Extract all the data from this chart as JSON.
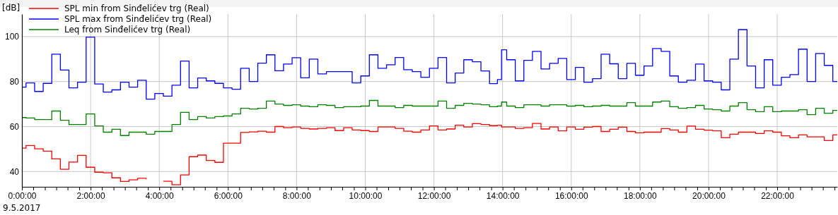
{
  "chart_data": {
    "type": "step",
    "ylabel": "[dB]",
    "legend": "top left",
    "grid": true,
    "annotations": [
      "9.5.2017"
    ],
    "xlim": [
      0,
      23.75
    ],
    "ylim": [
      33.2,
      110
    ],
    "yticks": [
      40,
      60,
      80,
      100
    ],
    "xticks": [
      {
        "value": 0,
        "label": "0:00:00"
      },
      {
        "value": 0.33,
        "label": null
      },
      {
        "value": 0.67,
        "label": null
      },
      {
        "value": 1,
        "label": null
      },
      {
        "value": 1.33,
        "label": null
      },
      {
        "value": 1.67,
        "label": null
      },
      {
        "value": 2,
        "label": "2:00:00"
      },
      {
        "value": 2.33,
        "label": null
      },
      {
        "value": 2.67,
        "label": null
      },
      {
        "value": 3,
        "label": null
      },
      {
        "value": 3.33,
        "label": null
      },
      {
        "value": 3.67,
        "label": null
      },
      {
        "value": 4,
        "label": "4:00:00"
      },
      {
        "value": 4.33,
        "label": null
      },
      {
        "value": 4.67,
        "label": null
      },
      {
        "value": 5,
        "label": null
      },
      {
        "value": 5.33,
        "label": null
      },
      {
        "value": 5.67,
        "label": null
      },
      {
        "value": 6,
        "label": "6:00:00"
      },
      {
        "value": 6.33,
        "label": null
      },
      {
        "value": 6.67,
        "label": null
      },
      {
        "value": 7,
        "label": null
      },
      {
        "value": 7.33,
        "label": null
      },
      {
        "value": 7.67,
        "label": null
      },
      {
        "value": 8,
        "label": "8:00:00"
      },
      {
        "value": 8.33,
        "label": null
      },
      {
        "value": 8.67,
        "label": null
      },
      {
        "value": 9,
        "label": null
      },
      {
        "value": 9.33,
        "label": null
      },
      {
        "value": 9.67,
        "label": null
      },
      {
        "value": 10,
        "label": "10:00:00"
      },
      {
        "value": 10.33,
        "label": null
      },
      {
        "value": 10.67,
        "label": null
      },
      {
        "value": 11,
        "label": null
      },
      {
        "value": 11.33,
        "label": null
      },
      {
        "value": 11.67,
        "label": null
      },
      {
        "value": 12,
        "label": "12:00:00"
      },
      {
        "value": 12.33,
        "label": null
      },
      {
        "value": 12.67,
        "label": null
      },
      {
        "value": 13,
        "label": null
      },
      {
        "value": 13.33,
        "label": null
      },
      {
        "value": 13.67,
        "label": null
      },
      {
        "value": 14,
        "label": "14:00:00"
      },
      {
        "value": 14.33,
        "label": null
      },
      {
        "value": 14.67,
        "label": null
      },
      {
        "value": 15,
        "label": null
      },
      {
        "value": 15.33,
        "label": null
      },
      {
        "value": 15.67,
        "label": null
      },
      {
        "value": 16,
        "label": "16:00:00"
      },
      {
        "value": 16.33,
        "label": null
      },
      {
        "value": 16.67,
        "label": null
      },
      {
        "value": 17,
        "label": null
      },
      {
        "value": 17.33,
        "label": null
      },
      {
        "value": 17.67,
        "label": null
      },
      {
        "value": 18,
        "label": "18:00:00"
      },
      {
        "value": 18.33,
        "label": null
      },
      {
        "value": 18.67,
        "label": null
      },
      {
        "value": 19,
        "label": null
      },
      {
        "value": 19.33,
        "label": null
      },
      {
        "value": 19.67,
        "label": null
      },
      {
        "value": 20,
        "label": "20:00:00"
      },
      {
        "value": 20.33,
        "label": null
      },
      {
        "value": 20.67,
        "label": null
      },
      {
        "value": 21,
        "label": null
      },
      {
        "value": 21.33,
        "label": null
      },
      {
        "value": 21.67,
        "label": null
      },
      {
        "value": 22,
        "label": "22:00:00"
      },
      {
        "value": 22.33,
        "label": null
      },
      {
        "value": 22.67,
        "label": null
      },
      {
        "value": 23,
        "label": null
      },
      {
        "value": 23.33,
        "label": null
      },
      {
        "value": 23.67,
        "label": null
      }
    ],
    "x": [
      0,
      0.12,
      0.37,
      0.62,
      0.87,
      1.12,
      1.37,
      1.62,
      1.87,
      2.12,
      2.37,
      2.62,
      2.87,
      3.12,
      3.37,
      3.62,
      3.87,
      4.12,
      4.37,
      4.62,
      4.87,
      5.12,
      5.37,
      5.62,
      5.87,
      6.12,
      6.37,
      6.62,
      6.87,
      7.12,
      7.37,
      7.62,
      7.87,
      8.12,
      8.37,
      8.62,
      8.87,
      9.12,
      9.37,
      9.62,
      9.87,
      10.12,
      10.37,
      10.62,
      10.87,
      11.12,
      11.37,
      11.62,
      11.87,
      12.12,
      12.37,
      12.62,
      12.87,
      13.12,
      13.37,
      13.62,
      13.85,
      13.97,
      14.12,
      14.37,
      14.62,
      14.87,
      15.12,
      15.37,
      15.62,
      15.87,
      16.12,
      16.37,
      16.62,
      16.87,
      17.12,
      17.37,
      17.62,
      17.87,
      18.12,
      18.37,
      18.62,
      18.87,
      19.12,
      19.37,
      19.62,
      19.87,
      20.12,
      20.37,
      20.62,
      20.87,
      21.12,
      21.37,
      21.62,
      21.87,
      22.12,
      22.37,
      22.62,
      22.87,
      23.12,
      23.37,
      23.62,
      23.75
    ],
    "series": [
      {
        "name": "SPL min from Sinđelićev trg (Real)",
        "color": "#ff0000",
        "values": [
          50.4,
          51.6,
          50.1,
          49.1,
          45.6,
          41.0,
          44.2,
          47.2,
          41.9,
          39.7,
          39.4,
          37.2,
          35.6,
          36.3,
          37.0,
          36.6,
          null,
          35.7,
          34.1,
          38.5,
          46.6,
          47.3,
          44.9,
          44.1,
          52.6,
          52.6,
          57.4,
          57.6,
          57.9,
          57.5,
          60.0,
          59.5,
          59.8,
          59.2,
          58.9,
          59.2,
          59.5,
          58.2,
          59.5,
          58.5,
          58.2,
          57.8,
          59.8,
          59.8,
          59.2,
          57.9,
          57.5,
          58.5,
          60.3,
          58.5,
          58.9,
          60.6,
          59.8,
          61.3,
          60.9,
          60.4,
          60.6,
          59.8,
          59.8,
          59.2,
          59.5,
          61.4,
          58.9,
          59.8,
          58.1,
          59.8,
          58.8,
          59.7,
          60.0,
          57.8,
          58.8,
          59.7,
          57.8,
          57.2,
          57.5,
          57.5,
          59.1,
          58.5,
          57.5,
          60.2,
          58.8,
          58.4,
          58.1,
          55.0,
          56.6,
          57.5,
          57.5,
          56.9,
          58.1,
          57.5,
          55.9,
          55.0,
          56.3,
          55.4,
          55.4,
          53.8,
          56.3,
          56.3
        ]
      },
      {
        "name": "SPL max from Sinđelićev trg (Real)",
        "color": "#0000ff",
        "values": [
          77.5,
          79.4,
          75.6,
          79.2,
          92.2,
          85.1,
          77.2,
          79.7,
          99.8,
          78.9,
          75.3,
          76.3,
          79.7,
          77.5,
          80.6,
          72.2,
          74.7,
          73.5,
          78.4,
          89.1,
          77.2,
          81.6,
          80.3,
          79.2,
          77.2,
          76.6,
          85.9,
          80.0,
          88.2,
          91.9,
          84.8,
          87.8,
          90.6,
          81.7,
          90.0,
          83.4,
          84.4,
          84.4,
          84.4,
          79.4,
          82.5,
          91.9,
          85.9,
          87.5,
          90.7,
          85.3,
          84.4,
          81.9,
          85.9,
          90.7,
          79.4,
          83.8,
          89.7,
          88.8,
          84.7,
          79.1,
          80.9,
          94.1,
          89.7,
          80.3,
          89.4,
          93.4,
          85.6,
          88.1,
          90.3,
          80.9,
          86.3,
          79.7,
          81.3,
          92.2,
          87.9,
          81.3,
          88.1,
          82.8,
          86.9,
          94.7,
          93.4,
          82.5,
          79.7,
          80.6,
          87.8,
          80.3,
          79.7,
          76.3,
          90.0,
          103.1,
          86.9,
          77.2,
          89.7,
          78.4,
          81.9,
          83.1,
          94.4,
          80.0,
          92.5,
          87.2,
          80.0,
          80.0
        ]
      },
      {
        "name": "Leq from Sinđelićev trg (Real)",
        "color": "#008000",
        "values": [
          64.0,
          63.8,
          63.1,
          63.1,
          66.9,
          62.8,
          60.9,
          60.9,
          65.6,
          60.3,
          57.5,
          58.8,
          56.0,
          57.5,
          57.5,
          56.6,
          57.8,
          57.8,
          60.9,
          66.3,
          63.1,
          64.4,
          63.8,
          64.4,
          64.7,
          65.6,
          68.1,
          67.8,
          68.1,
          71.3,
          70.0,
          69.4,
          69.7,
          69.1,
          68.8,
          69.7,
          69.4,
          68.4,
          68.8,
          68.8,
          69.1,
          71.6,
          69.1,
          69.1,
          68.4,
          69.4,
          69.1,
          69.1,
          69.1,
          71.3,
          68.1,
          69.4,
          70.3,
          70.0,
          69.7,
          68.8,
          69.1,
          70.9,
          69.1,
          68.4,
          69.7,
          69.7,
          69.1,
          69.7,
          69.7,
          69.1,
          69.4,
          68.8,
          69.1,
          69.4,
          69.1,
          69.1,
          70.6,
          69.1,
          69.1,
          70.9,
          71.3,
          68.8,
          68.1,
          68.4,
          69.4,
          67.8,
          67.5,
          66.9,
          69.1,
          70.6,
          67.5,
          66.6,
          68.8,
          66.6,
          66.9,
          66.9,
          67.5,
          65.3,
          68.1,
          65.9,
          67.2,
          67.2
        ]
      }
    ]
  }
}
